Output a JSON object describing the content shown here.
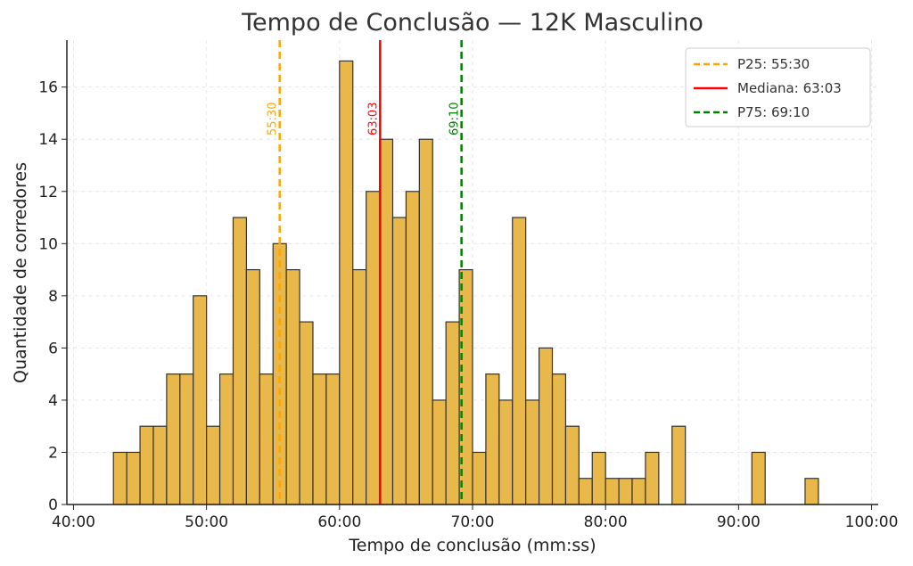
{
  "chart_data": {
    "type": "bar",
    "title": "Tempo de Conclusão — 12K Masculino",
    "xlabel": "Tempo de conclusão (mm:ss)",
    "ylabel": "Quantidade de corredores",
    "bar_color": "#E8B84A",
    "bar_edge_color": "#333333",
    "xlim": [
      39.5,
      100.5
    ],
    "ylim": [
      0,
      17.8
    ],
    "x_ticks": [
      40,
      50,
      60,
      70,
      80,
      90,
      100
    ],
    "x_tick_labels": [
      "40:00",
      "50:00",
      "60:00",
      "70:00",
      "80:00",
      "90:00",
      "100:00"
    ],
    "y_ticks": [
      0,
      2,
      4,
      6,
      8,
      10,
      12,
      14,
      16
    ],
    "y_tick_labels": [
      "0",
      "2",
      "4",
      "6",
      "8",
      "10",
      "12",
      "14",
      "16"
    ],
    "grid": true,
    "legend_position": "top-right",
    "bin_start": 43.0,
    "bin_width": 1.0,
    "counts": [
      2,
      2,
      3,
      3,
      5,
      5,
      8,
      3,
      5,
      11,
      9,
      5,
      10,
      9,
      7,
      5,
      5,
      17,
      9,
      12,
      14,
      11,
      12,
      14,
      4,
      7,
      9,
      2,
      5,
      4,
      11,
      4,
      6,
      5,
      3,
      1,
      2,
      1,
      1,
      1,
      2,
      0,
      3,
      0,
      0,
      0,
      0,
      0,
      2,
      0,
      0,
      0,
      1
    ],
    "markers": [
      {
        "name": "P25: 55:30",
        "label": "55:30",
        "x": 55.5,
        "color": "#FFA500",
        "style": "dashed"
      },
      {
        "name": "Mediana: 63:03",
        "label": "63:03",
        "x": 63.05,
        "color": "#FF0000",
        "style": "solid"
      },
      {
        "name": "P75: 69:10",
        "label": "69:10",
        "x": 69.17,
        "color": "#008000",
        "style": "dashed"
      }
    ]
  }
}
